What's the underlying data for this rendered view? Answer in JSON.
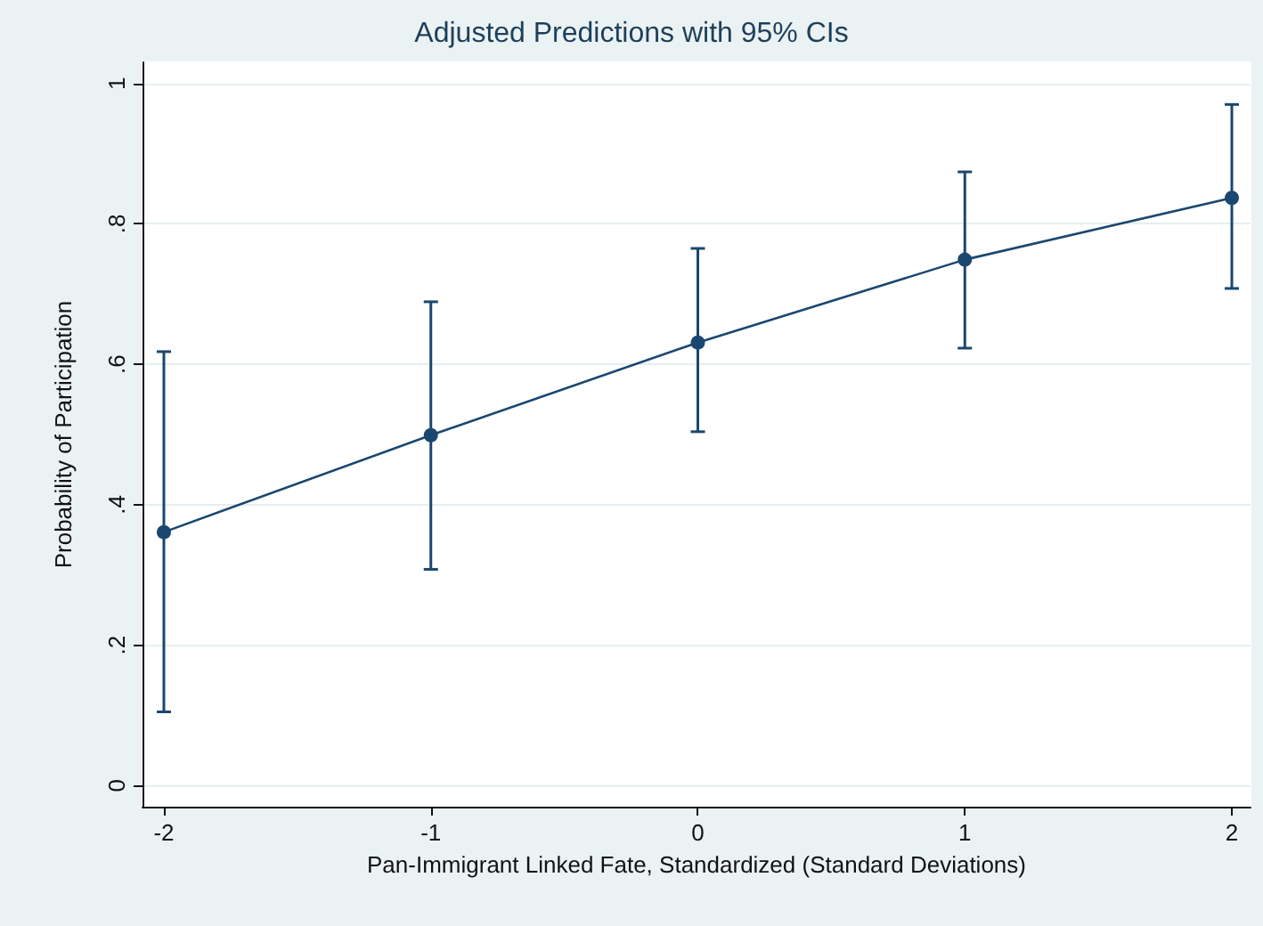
{
  "chart_data": {
    "type": "line",
    "title": "Adjusted Predictions with 95% CIs",
    "xlabel": "Pan-Immigrant Linked Fate, Standardized (Standard Deviations)",
    "ylabel": "Probability of Participation",
    "x": [
      -2,
      -1,
      0,
      1,
      2
    ],
    "series": [
      {
        "color": "#1a476f",
        "values": [
          0.361,
          0.499,
          0.631,
          0.749,
          0.837
        ],
        "errors": [
          [
            0.105,
            0.618
          ],
          [
            0.308,
            0.689
          ],
          [
            0.504,
            0.765
          ],
          [
            0.623,
            0.874
          ],
          [
            0.708,
            0.97
          ]
        ]
      }
    ],
    "xlim": [
      -2.08,
      2.07
    ],
    "xticks": [
      -2,
      -1,
      0,
      1,
      2
    ],
    "ylim": [
      -0.03,
      1.03
    ],
    "yticks": [
      {
        "value": 0,
        "label": "0"
      },
      {
        "value": 0.2,
        "label": ".2"
      },
      {
        "value": 0.4,
        "label": ".4"
      },
      {
        "value": 0.6,
        "label": ".6"
      },
      {
        "value": 0.8,
        "label": ".8"
      },
      {
        "value": 1,
        "label": "1"
      }
    ],
    "grid": "y",
    "marker": "circle",
    "line_style": "solid"
  }
}
